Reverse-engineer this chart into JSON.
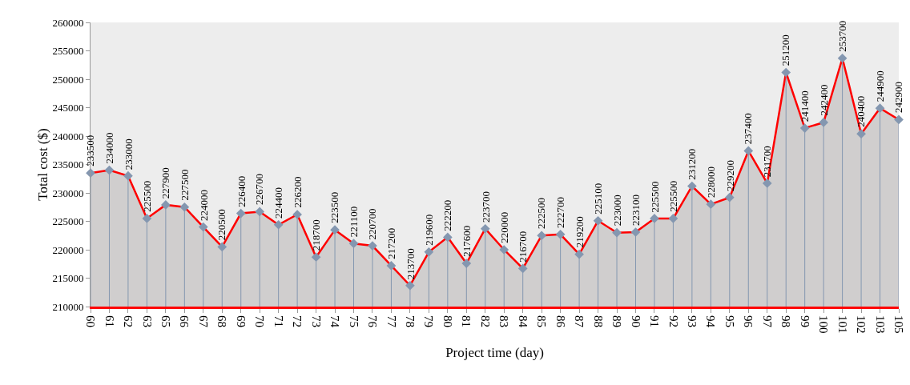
{
  "chart_data": {
    "type": "area",
    "xlabel": "Project time (day)",
    "ylabel": "Total cost ($)",
    "categories": [
      "60",
      "61",
      "62",
      "63",
      "65",
      "66",
      "67",
      "68",
      "69",
      "70",
      "71",
      "72",
      "73",
      "74",
      "75",
      "76",
      "77",
      "78",
      "79",
      "80",
      "81",
      "82",
      "83",
      "84",
      "85",
      "86",
      "87",
      "88",
      "89",
      "90",
      "91",
      "92",
      "93",
      "94",
      "95",
      "96",
      "97",
      "98",
      "99",
      "100",
      "101",
      "102",
      "103",
      "105"
    ],
    "series": [
      {
        "color": "#ff0000",
        "values": [
          233500,
          234000,
          233000,
          225500,
          227900,
          227500,
          224000,
          220500,
          226400,
          226700,
          224400,
          226200,
          218700,
          223500,
          221100,
          220700,
          217200,
          213700,
          219600,
          222200,
          217600,
          223700,
          220000,
          216700,
          222500,
          222700,
          219200,
          225100,
          223000,
          223100,
          225500,
          225500,
          231200,
          228000,
          229200,
          237400,
          231700,
          251200,
          241400,
          242400,
          253700,
          240400,
          244900,
          242900
        ]
      }
    ],
    "ylim": [
      210000,
      260000
    ],
    "yticks": [
      210000,
      215000,
      220000,
      225000,
      230000,
      235000,
      240000,
      245000,
      250000,
      255000,
      260000
    ],
    "data_labels": true,
    "marker": "diamond"
  }
}
